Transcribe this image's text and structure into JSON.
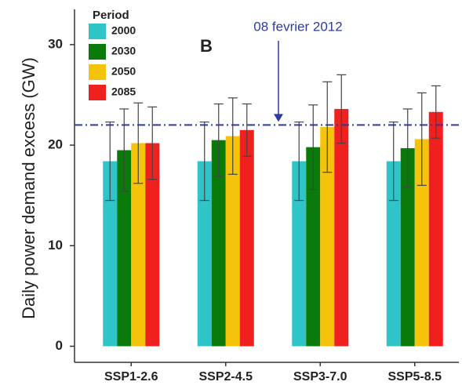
{
  "chart_data": {
    "type": "bar",
    "panel_label": "B",
    "y_label": "Daily power demand excess (GW)",
    "legend_title": "Period",
    "categories": [
      "SSP1-2.6",
      "SSP2-4.5",
      "SSP3-7.0",
      "SSP5-8.5"
    ],
    "series": [
      {
        "name": "2000",
        "color": "#2ec4c8",
        "values": [
          18.4,
          18.4,
          18.4,
          18.4
        ],
        "errors": [
          3.9,
          3.9,
          3.9,
          3.9
        ]
      },
      {
        "name": "2030",
        "color": "#0a7a0a",
        "values": [
          19.5,
          20.5,
          19.8,
          19.7
        ],
        "errors": [
          4.1,
          3.6,
          4.2,
          3.9
        ]
      },
      {
        "name": "2050",
        "color": "#f5c40a",
        "values": [
          20.2,
          20.9,
          21.8,
          20.6
        ],
        "errors": [
          4.0,
          3.8,
          4.5,
          4.6
        ]
      },
      {
        "name": "2085",
        "color": "#f0201e",
        "values": [
          20.2,
          21.5,
          23.6,
          23.3
        ],
        "errors": [
          3.6,
          2.6,
          3.4,
          2.6
        ]
      }
    ],
    "reference_line": {
      "value": 22,
      "label": "08 fevrier 2012",
      "color": "#2e3b9e"
    },
    "ylim": [
      -1.6,
      33.5
    ],
    "yticks": [
      0,
      10,
      20,
      30
    ],
    "grid": false,
    "legend_position": "top-left"
  }
}
